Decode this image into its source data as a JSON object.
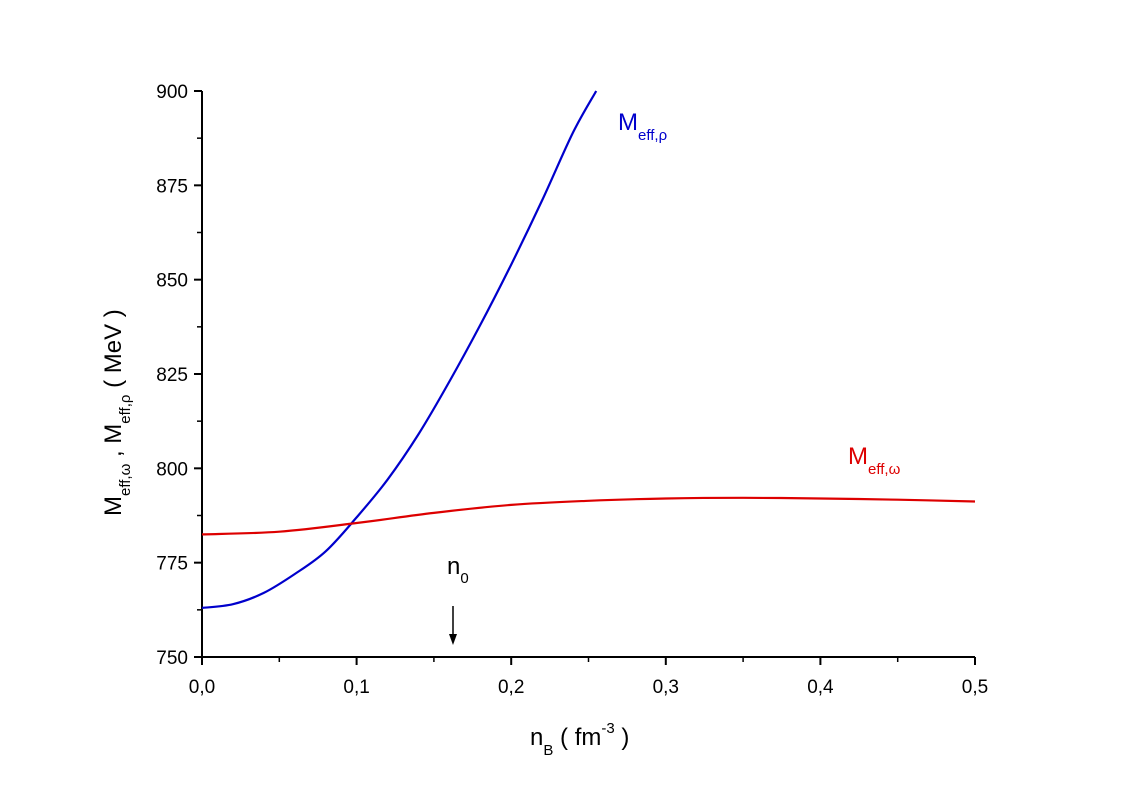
{
  "chart_data": {
    "type": "line",
    "xlim": [
      0,
      0.5
    ],
    "ylim": [
      750,
      900
    ],
    "x_ticks": [
      "0,0",
      "0,1",
      "0,2",
      "0,3",
      "0,4",
      "0,5"
    ],
    "y_ticks": [
      "750",
      "775",
      "800",
      "825",
      "850",
      "875",
      "900"
    ],
    "xlabel": {
      "main": "n",
      "sub": "B",
      "rest": " ( fm",
      "sup": "-3",
      "end": " )"
    },
    "ylabel": {
      "m1": "M",
      "s1": "eff,ω",
      "sep": " , ",
      "m2": "M",
      "s2": "eff,ρ",
      "unit": "  ( MeV )"
    },
    "grid": false,
    "series": [
      {
        "name": "M_eff,ρ",
        "label_main": "M",
        "label_sub": "eff,ρ",
        "color": "#0000cc",
        "x": [
          0.0,
          0.02,
          0.04,
          0.06,
          0.08,
          0.1,
          0.12,
          0.14,
          0.16,
          0.18,
          0.2,
          0.22,
          0.24,
          0.255
        ],
        "y": [
          763,
          764,
          767,
          772,
          778,
          787,
          797,
          809,
          823,
          838,
          854,
          871,
          889,
          900
        ]
      },
      {
        "name": "M_eff,ω",
        "label_main": "M",
        "label_sub": "eff,ω",
        "color": "#dd0000",
        "x": [
          0.0,
          0.05,
          0.1,
          0.15,
          0.2,
          0.25,
          0.3,
          0.35,
          0.4,
          0.45,
          0.5
        ],
        "y": [
          782.5,
          783.2,
          785.5,
          788.2,
          790.3,
          791.4,
          792.0,
          792.2,
          792.0,
          791.7,
          791.2
        ]
      }
    ],
    "annotations": [
      {
        "text_main": "n",
        "text_sub": "0",
        "x": 0.163,
        "arrow": "down"
      }
    ]
  }
}
